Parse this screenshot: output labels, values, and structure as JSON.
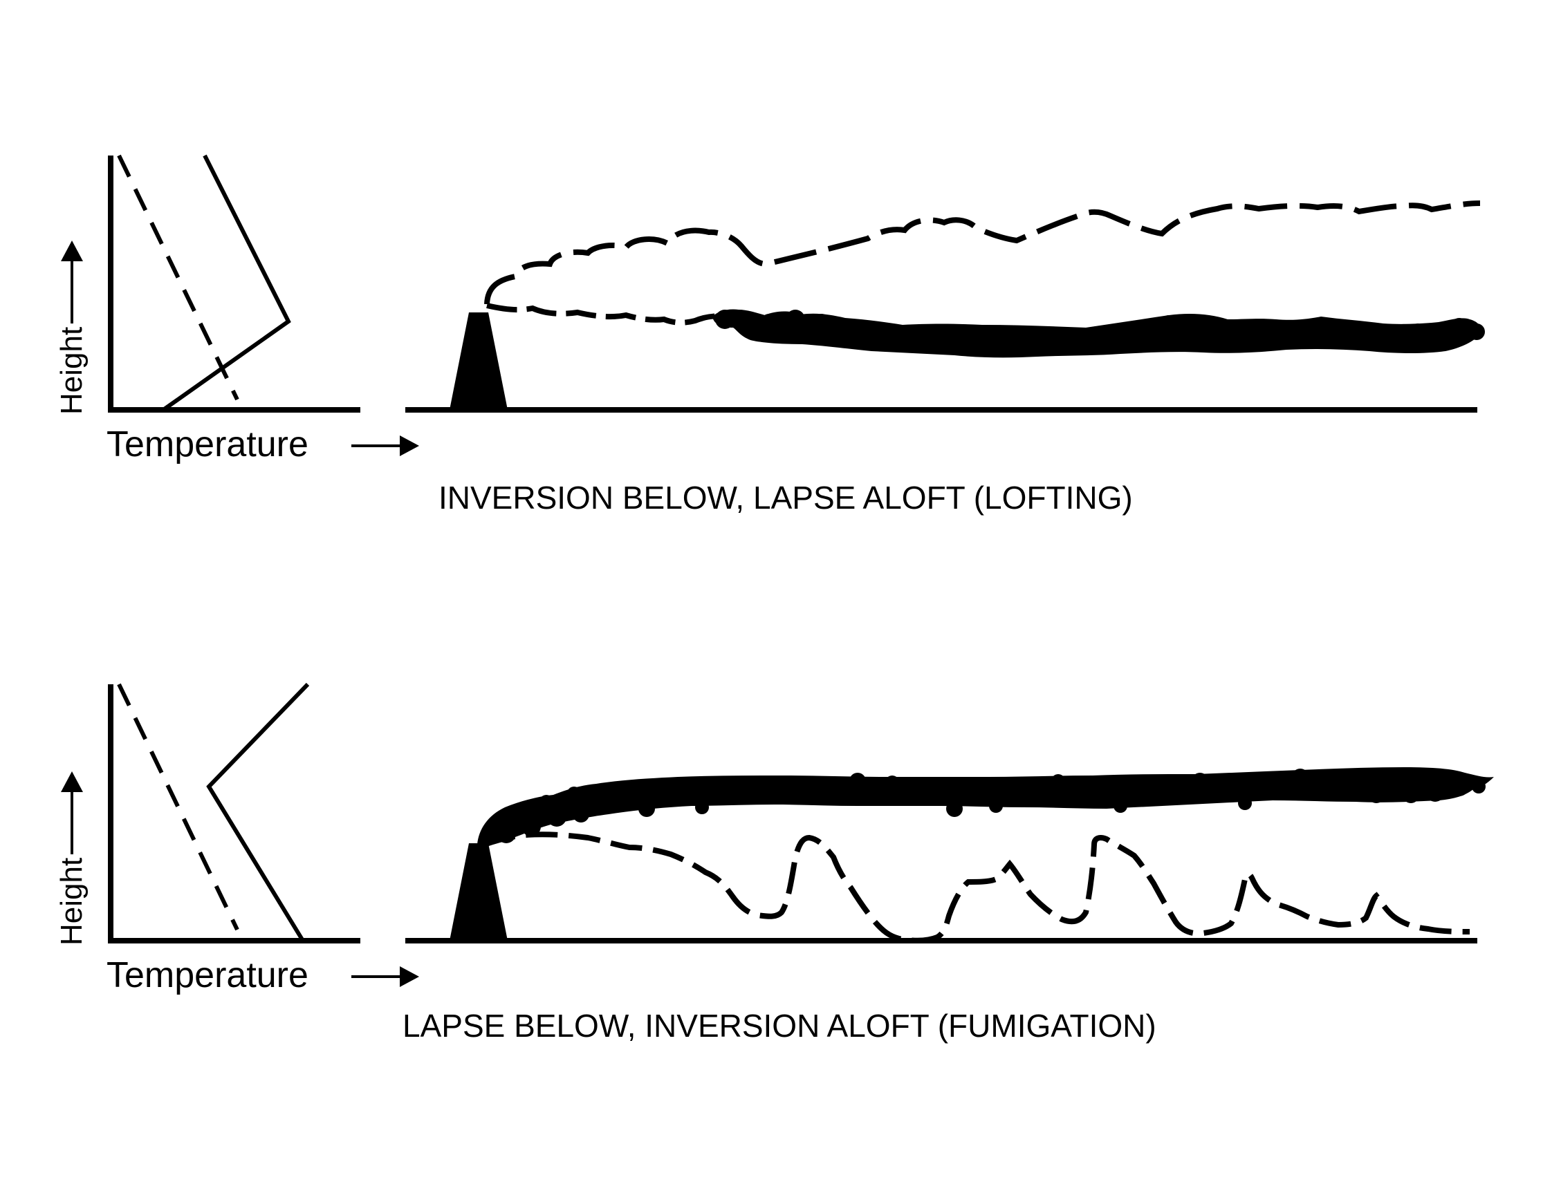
{
  "panels": [
    {
      "id": "lofting",
      "x_axis_label": "Temperature",
      "y_axis_label": "Height",
      "caption": "INVERSION BELOW, LAPSE ALOFT (LOFTING)"
    },
    {
      "id": "fumigation",
      "x_axis_label": "Temperature",
      "y_axis_label": "Height",
      "caption": "LAPSE BELOW, INVERSION ALOFT (FUMIGATION)"
    }
  ],
  "colors": {
    "ink": "#000000",
    "background": "#ffffff"
  }
}
